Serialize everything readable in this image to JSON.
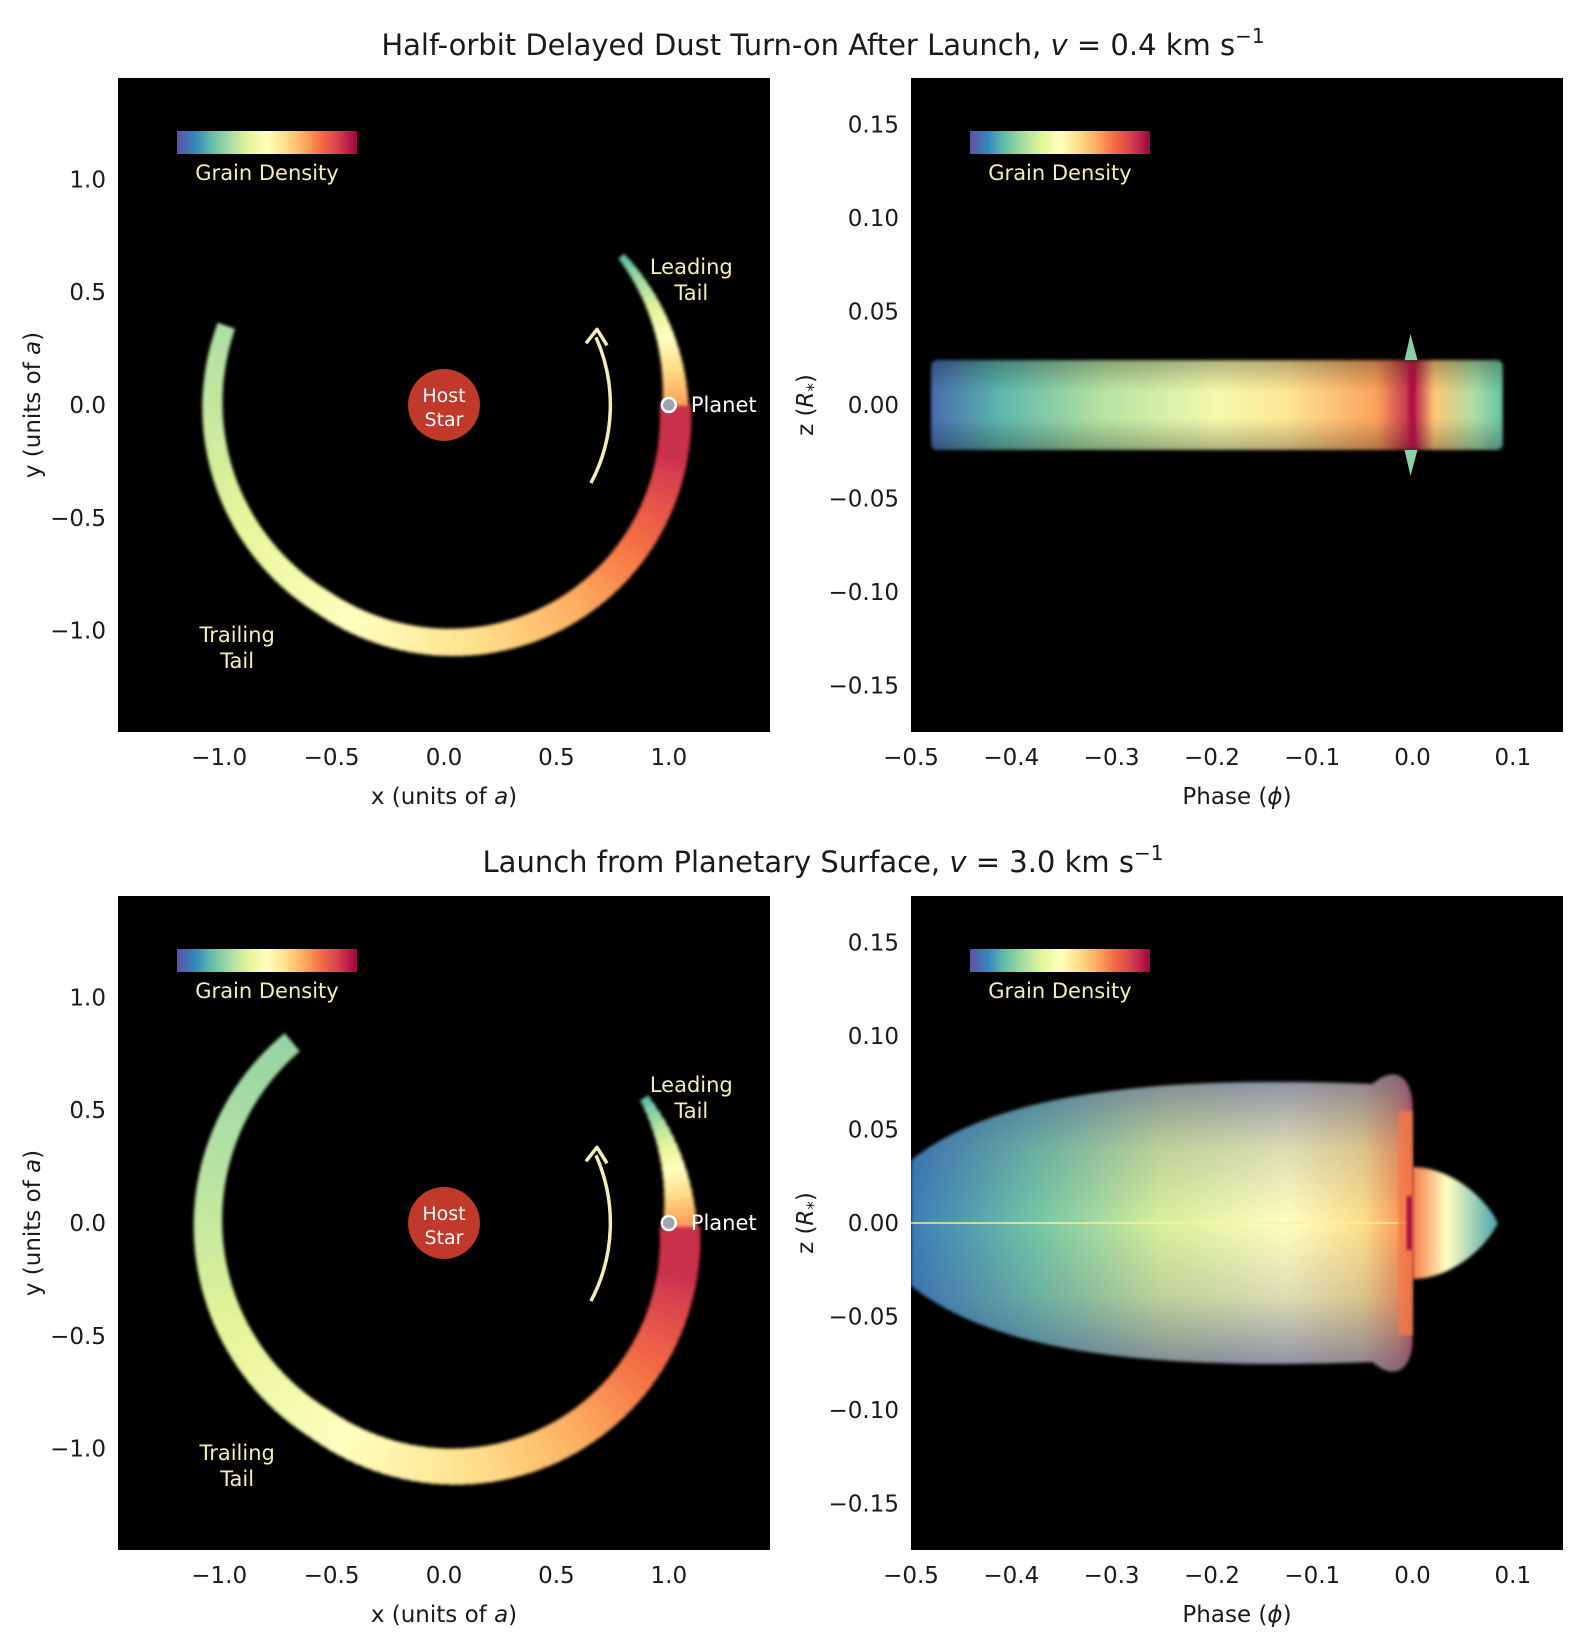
{
  "figure": {
    "rows": [
      {
        "title": "Half-orbit Delayed Dust Turn-on After Launch, v = 0.4 km s⁻¹",
        "title_main": "Half-orbit Delayed Dust Turn-on After Launch, ",
        "title_var": "v",
        "title_value": " = 0.4 km s",
        "title_sup": "−1"
      },
      {
        "title": "Launch from Planetary Surface, v = 3.0 km s⁻¹",
        "title_main": "Launch from Planetary Surface, ",
        "title_var": "v",
        "title_value": " = 3.0 km s",
        "title_sup": "−1"
      }
    ],
    "colormap": [
      "#5e4fa2",
      "#3288bd",
      "#66c2a5",
      "#abdda4",
      "#e6f598",
      "#ffffbf",
      "#fee08b",
      "#fdae61",
      "#f46d43",
      "#d53e4f",
      "#9e0142"
    ],
    "background": "#000000",
    "star_color": "#c0392b",
    "arrow_color": "#f4eeb6",
    "annotation_color": "#f4eeb6"
  },
  "chart_data": [
    {
      "type": "heatmap",
      "panel": "top-left",
      "xlabel": "x (units of a)",
      "xlabel_main": "x (units of ",
      "xlabel_var": "a",
      "xlabel_end": ")",
      "ylabel": "y (units of a)",
      "ylabel_main": "y (units of ",
      "ylabel_var": "a",
      "ylabel_end": ")",
      "xlim": [
        -1.45,
        1.45
      ],
      "ylim": [
        -1.45,
        1.45
      ],
      "xticks": [
        -1.0,
        -0.5,
        0.0,
        0.5,
        1.0
      ],
      "xtick_labels": [
        "−1.0",
        "−0.5",
        "0.0",
        "0.5",
        "1.0"
      ],
      "yticks": [
        1.0,
        0.5,
        0.0,
        -0.5,
        -1.0
      ],
      "ytick_labels": [
        "1.0",
        "0.5",
        "0.0",
        "−0.5",
        "−1.0"
      ],
      "colorbar_label": "Grain Density",
      "colorbar_position": "top-left",
      "star": {
        "x": 0.0,
        "y": 0.0,
        "label_line1": "Host",
        "label_line2": "Star"
      },
      "planet": {
        "x": 1.0,
        "y": 0.0,
        "label": "Planet"
      },
      "annotations": [
        {
          "line1": "Leading",
          "line2": "Tail",
          "x": 1.1,
          "y": 0.58
        },
        {
          "line1": "Trailing",
          "line2": "Tail",
          "x": -0.92,
          "y": -1.05
        }
      ],
      "leading_tail_end_angle_deg": 40,
      "trailing_tail_start_angle_deg": 160,
      "tail_radius": 1.03,
      "tail_width": 0.14
    },
    {
      "type": "heatmap",
      "panel": "top-right",
      "xlabel": "Phase (ϕ)",
      "xlabel_main": "Phase (",
      "xlabel_var": "ϕ",
      "xlabel_end": ")",
      "ylabel": "z (R*)",
      "ylabel_main": "z (",
      "ylabel_var": "R",
      "ylabel_sub": "*",
      "ylabel_end": ")",
      "xlim": [
        -0.5,
        0.15
      ],
      "ylim": [
        -0.175,
        0.175
      ],
      "xticks": [
        -0.5,
        -0.4,
        -0.3,
        -0.2,
        -0.1,
        0.0,
        0.1
      ],
      "xtick_labels": [
        "−0.5",
        "−0.4",
        "−0.3",
        "−0.2",
        "−0.1",
        "0.0",
        "0.1"
      ],
      "yticks": [
        0.15,
        0.1,
        0.05,
        0.0,
        -0.05,
        -0.1,
        -0.15
      ],
      "ytick_labels": [
        "0.15",
        "0.10",
        "0.05",
        "0.00",
        "−0.05",
        "−0.10",
        "−0.15"
      ],
      "colorbar_label": "Grain Density",
      "colorbar_position": "top-left",
      "extent_phase": [
        -0.48,
        0.09
      ],
      "half_height_z": 0.024,
      "peak_phase": 0.0
    },
    {
      "type": "heatmap",
      "panel": "bottom-left",
      "xlabel": "x (units of a)",
      "xlabel_main": "x (units of ",
      "xlabel_var": "a",
      "xlabel_end": ")",
      "ylabel": "y (units of a)",
      "ylabel_main": "y (units of ",
      "ylabel_var": "a",
      "ylabel_end": ")",
      "xlim": [
        -1.45,
        1.45
      ],
      "ylim": [
        -1.45,
        1.45
      ],
      "xticks": [
        -1.0,
        -0.5,
        0.0,
        0.5,
        1.0
      ],
      "xtick_labels": [
        "−1.0",
        "−0.5",
        "0.0",
        "0.5",
        "1.0"
      ],
      "yticks": [
        1.0,
        0.5,
        0.0,
        -0.5,
        -1.0
      ],
      "ytick_labels": [
        "1.0",
        "0.5",
        "0.0",
        "−0.5",
        "−1.0"
      ],
      "colorbar_label": "Grain Density",
      "colorbar_position": "top-left",
      "star": {
        "x": 0.0,
        "y": 0.0,
        "label_line1": "Host",
        "label_line2": "Star"
      },
      "planet": {
        "x": 1.0,
        "y": 0.0,
        "label": "Planet"
      },
      "annotations": [
        {
          "line1": "Leading",
          "line2": "Tail",
          "x": 1.1,
          "y": 0.58
        },
        {
          "line1": "Trailing",
          "line2": "Tail",
          "x": -0.92,
          "y": -1.05
        }
      ],
      "leading_tail_end_angle_deg": 32,
      "trailing_tail_start_angle_deg": 130,
      "tail_radius": 1.05,
      "tail_width": 0.18
    },
    {
      "type": "heatmap",
      "panel": "bottom-right",
      "xlabel": "Phase (ϕ)",
      "xlabel_main": "Phase (",
      "xlabel_var": "ϕ",
      "xlabel_end": ")",
      "ylabel": "z (R*)",
      "ylabel_main": "z (",
      "ylabel_var": "R",
      "ylabel_sub": "*",
      "ylabel_end": ")",
      "xlim": [
        -0.5,
        0.15
      ],
      "ylim": [
        -0.175,
        0.175
      ],
      "xticks": [
        -0.5,
        -0.4,
        -0.3,
        -0.2,
        -0.1,
        0.0,
        0.1
      ],
      "xtick_labels": [
        "−0.5",
        "−0.4",
        "−0.3",
        "−0.2",
        "−0.1",
        "0.0",
        "0.1"
      ],
      "yticks": [
        0.15,
        0.1,
        0.05,
        0.0,
        -0.05,
        -0.1,
        -0.15
      ],
      "ytick_labels": [
        "0.15",
        "0.10",
        "0.05",
        "0.00",
        "−0.05",
        "−0.10",
        "−0.15"
      ],
      "colorbar_label": "Grain Density",
      "colorbar_position": "top-left",
      "extent_phase": [
        -0.5,
        0.0
      ],
      "max_half_height_z": 0.08,
      "bump_extent_phase": [
        0.0,
        0.085
      ],
      "bump_half_height_z": 0.03,
      "peak_phase": 0.0
    }
  ]
}
